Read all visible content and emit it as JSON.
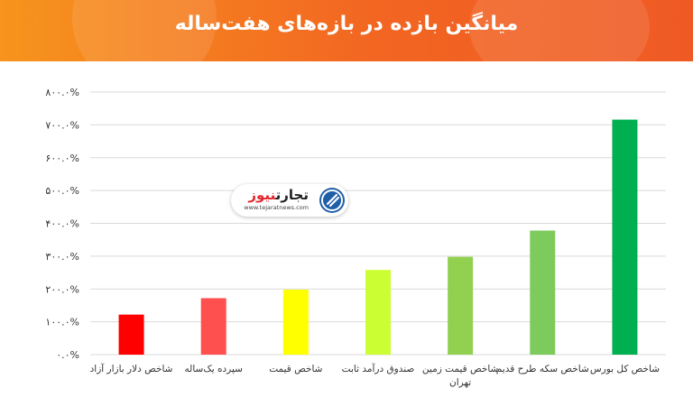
{
  "header": {
    "title": "میانگین بازده در بازه‌های هفت‌ساله"
  },
  "watermark": {
    "brand_part1": "تجارت",
    "brand_part2": "نیوز",
    "url": "www.tejaratnews.com",
    "icon": "tejaratnews-logo-icon"
  },
  "colors": {
    "header_start": "#f7941d",
    "header_end": "#ef5a24",
    "gridline": "#d9d9d9"
  },
  "chart_data": {
    "type": "bar",
    "title": "میانگین بازده در بازه‌های هفت‌ساله",
    "categories": [
      "شاخص دلار بازار آزاد",
      "سپرده یک‌ساله",
      "شاخص قیمت",
      "صندوق درآمد ثابت",
      "شاخص قیمت زمین تهران",
      "شاخص سکه طرح قدیم",
      "شاخص کل بورس"
    ],
    "category_lines": [
      [
        "شاخص دلار بازار آزاد"
      ],
      [
        "سپرده یک‌ساله"
      ],
      [
        "شاخص قیمت"
      ],
      [
        "صندوق درآمد ثابت"
      ],
      [
        "شاخص قیمت زمین",
        "تهران"
      ],
      [
        "شاخص سکه طرح قدیم"
      ],
      [
        "شاخص کل بورس"
      ]
    ],
    "values": [
      122,
      172,
      198,
      258,
      298,
      378,
      716
    ],
    "bar_colors": [
      "#ff0000",
      "#ff5050",
      "#ffff00",
      "#ccff33",
      "#92d050",
      "#7ccb5c",
      "#00b050"
    ],
    "ylim": [
      0,
      800
    ],
    "ytick_values": [
      0,
      100,
      200,
      300,
      400,
      500,
      600,
      700,
      800
    ],
    "ytick_labels": [
      "۰.۰%",
      "۱۰۰.۰%",
      "۲۰۰.۰%",
      "۳۰۰.۰%",
      "۴۰۰.۰%",
      "۵۰۰.۰%",
      "۶۰۰.۰%",
      "۷۰۰.۰%",
      "۸۰۰.۰%"
    ],
    "grid": true,
    "legend": "none",
    "xlabel": "",
    "ylabel": ""
  }
}
